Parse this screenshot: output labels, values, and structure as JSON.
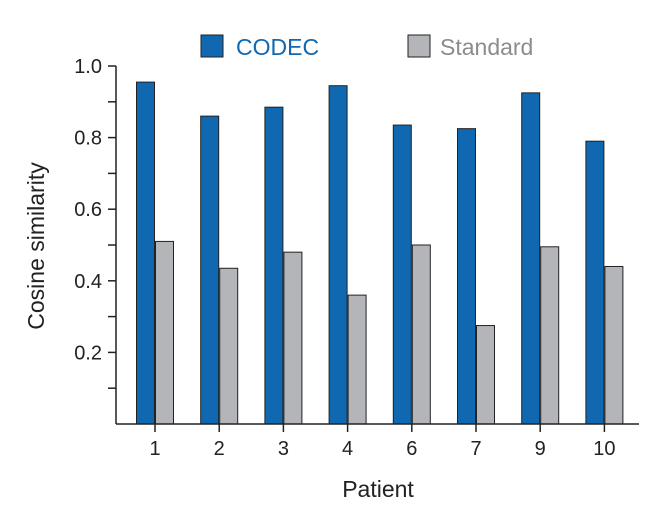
{
  "chart_data": {
    "type": "bar",
    "title": "",
    "xlabel": "Patient",
    "ylabel": "Cosine similarity",
    "categories": [
      "1",
      "2",
      "3",
      "4",
      "6",
      "7",
      "9",
      "10"
    ],
    "series": [
      {
        "name": "CODEC",
        "color": "#1069b0",
        "values": [
          0.955,
          0.86,
          0.885,
          0.945,
          0.835,
          0.825,
          0.925,
          0.79
        ]
      },
      {
        "name": "Standard",
        "color": "#b3b5b8",
        "values": [
          0.51,
          0.435,
          0.48,
          0.36,
          0.5,
          0.275,
          0.495,
          0.44
        ]
      }
    ],
    "ylim": [
      0,
      1.0
    ],
    "yticks": [
      {
        "value": 0.2,
        "label": "0.2"
      },
      {
        "value": 0.4,
        "label": "0.4"
      },
      {
        "value": 0.6,
        "label": "0.6"
      },
      {
        "value": 0.8,
        "label": "0.8"
      },
      {
        "value": 1.0,
        "label": "1.0"
      }
    ],
    "yminor_ticks": [
      0.1,
      0.3,
      0.5,
      0.7,
      0.9
    ],
    "grid": false,
    "legend_position": "top-center",
    "legend_text_colors": [
      "#1069b0",
      "#8a8c8f"
    ]
  }
}
